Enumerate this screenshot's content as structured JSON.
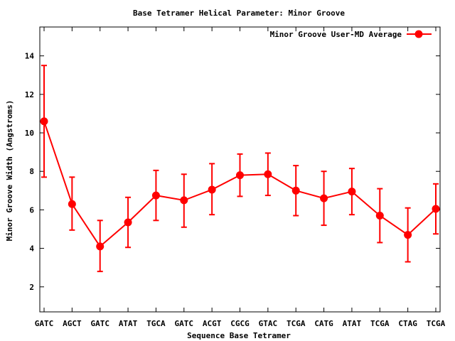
{
  "chart_data": {
    "type": "line",
    "title": "Base Tetramer Helical Parameter: Minor Groove",
    "xlabel": "Sequence Base Tetramer",
    "ylabel": "Minor Groove Width (Angstroms)",
    "ylim": [
      0.7,
      15.5
    ],
    "yticks": [
      2,
      4,
      6,
      8,
      10,
      12,
      14
    ],
    "legend_position": "top-right",
    "grid": false,
    "categories": [
      "GATC",
      "AGCT",
      "GATC",
      "ATAT",
      "TGCA",
      "GATC",
      "ACGT",
      "CGCG",
      "GTAC",
      "TCGA",
      "CATG",
      "ATAT",
      "TCGA",
      "CTAG",
      "TCGA"
    ],
    "series": [
      {
        "name": "Minor Groove User-MD Average",
        "color": "#ff0000",
        "values": [
          10.6,
          6.3,
          4.1,
          5.35,
          6.75,
          6.5,
          7.05,
          7.8,
          7.85,
          7.0,
          6.6,
          6.95,
          5.7,
          4.7,
          6.05
        ],
        "err_low": [
          7.7,
          4.95,
          2.8,
          4.05,
          5.45,
          5.1,
          5.75,
          6.7,
          6.75,
          5.7,
          5.2,
          5.75,
          4.3,
          3.3,
          4.75
        ],
        "err_high": [
          13.5,
          7.7,
          5.45,
          6.65,
          8.05,
          7.85,
          8.4,
          8.9,
          8.95,
          8.3,
          8.0,
          8.15,
          7.1,
          6.1,
          7.35
        ]
      }
    ]
  }
}
